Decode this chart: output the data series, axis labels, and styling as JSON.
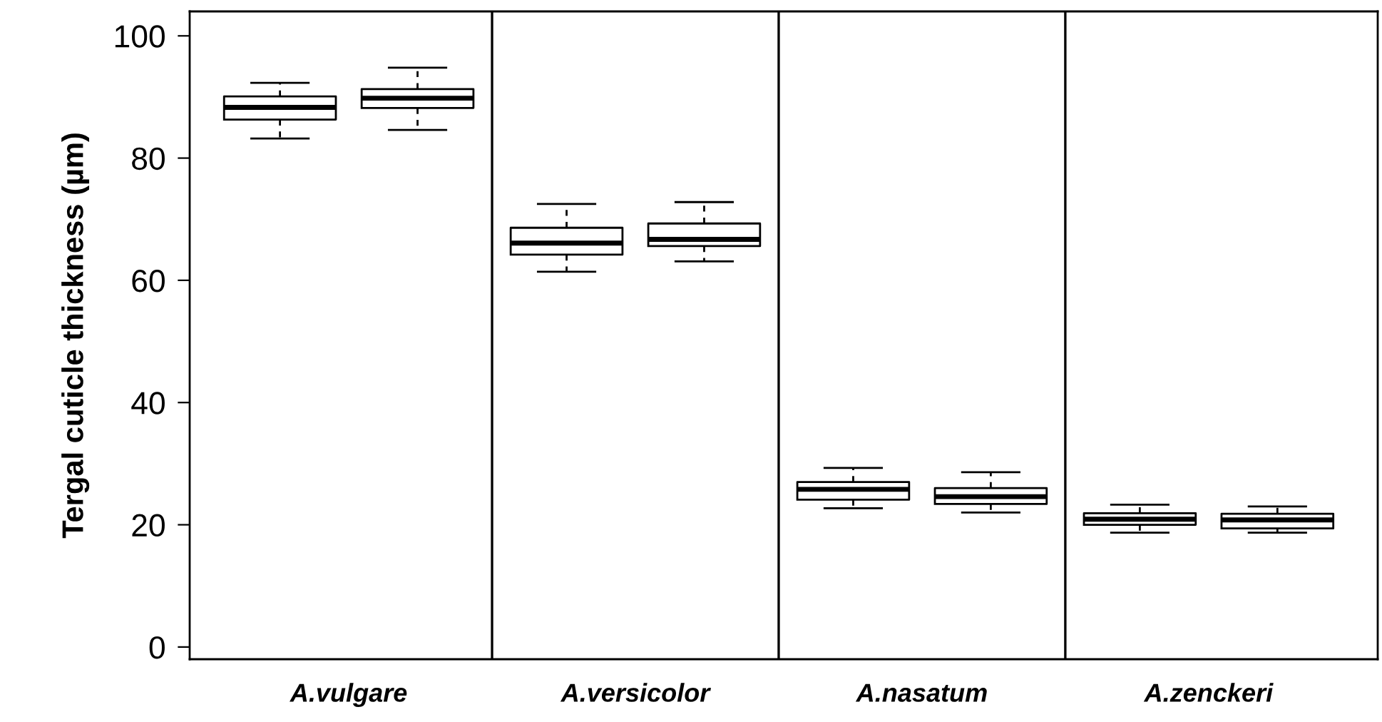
{
  "chart_data": {
    "type": "box",
    "ylabel": "Tergal cuticle thickness (µm)",
    "categories": [
      "A.vulgare",
      "A.versicolor",
      "A.nasatum",
      "A.zenckeri"
    ],
    "series": [
      {
        "color": "#000000",
        "boxes": [
          {
            "low": 83.2,
            "q1": 86.3,
            "median": 88.3,
            "q3": 90.1,
            "high": 92.3
          },
          {
            "low": 61.4,
            "q1": 64.2,
            "median": 66.1,
            "q3": 68.6,
            "high": 72.5
          },
          {
            "low": 22.7,
            "q1": 24.1,
            "median": 25.8,
            "q3": 27.0,
            "high": 29.3
          },
          {
            "low": 18.7,
            "q1": 20.0,
            "median": 20.9,
            "q3": 21.9,
            "high": 23.3
          }
        ]
      },
      {
        "color": "#000000",
        "boxes": [
          {
            "low": 84.6,
            "q1": 88.2,
            "median": 89.8,
            "q3": 91.3,
            "high": 94.8
          },
          {
            "low": 63.1,
            "q1": 65.6,
            "median": 66.7,
            "q3": 69.3,
            "high": 72.8
          },
          {
            "low": 22.0,
            "q1": 23.4,
            "median": 24.6,
            "q3": 26.0,
            "high": 28.6
          },
          {
            "low": 18.7,
            "q1": 19.4,
            "median": 20.8,
            "q3": 21.8,
            "high": 23.0
          }
        ]
      }
    ],
    "ylim": [
      -2,
      104
    ],
    "yticks": [
      0,
      20,
      40,
      60,
      80,
      100
    ],
    "grid": false,
    "legend": false
  }
}
